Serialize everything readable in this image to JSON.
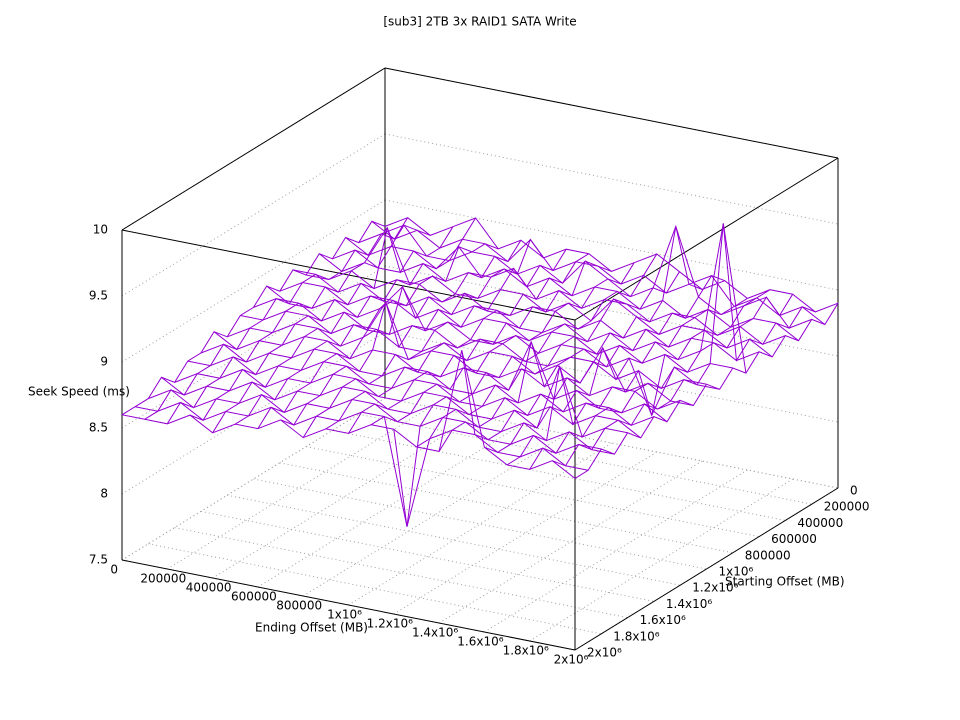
{
  "chart_data": {
    "type": "surface3d",
    "title": "[sub3] 2TB 3x RAID1 SATA Write",
    "xlabel": "Ending Offset (MB)",
    "ylabel": "Starting Offset (MB)",
    "zlabel": "Seek Speed (ms)",
    "color": "#9400d3",
    "grid": true,
    "xlim": [
      0,
      2000000
    ],
    "ylim": [
      0,
      2000000
    ],
    "zlim": [
      7.5,
      10
    ],
    "xticks": [
      0,
      200000,
      400000,
      600000,
      800000,
      {
        "value": 1000000,
        "label": "1x10⁶"
      },
      {
        "value": 1200000,
        "label": "1.2x10⁶"
      },
      {
        "value": 1400000,
        "label": "1.4x10⁶"
      },
      {
        "value": 1600000,
        "label": "1.6x10⁶"
      },
      {
        "value": 1800000,
        "label": "1.8x10⁶"
      },
      {
        "value": 2000000,
        "label": "2x10⁶"
      }
    ],
    "yticks": [
      0,
      200000,
      400000,
      600000,
      800000,
      {
        "value": 1000000,
        "label": "1x10⁶"
      },
      {
        "value": 1200000,
        "label": "1.2x10⁶"
      },
      {
        "value": 1400000,
        "label": "1.4x10⁶"
      },
      {
        "value": 1600000,
        "label": "1.6x10⁶"
      },
      {
        "value": 1800000,
        "label": "1.8x10⁶"
      },
      {
        "value": 2000000,
        "label": "2x10⁶"
      }
    ],
    "zticks": [
      7.5,
      8,
      8.5,
      9,
      9.5,
      10
    ],
    "x": [
      0,
      100000,
      200000,
      300000,
      400000,
      500000,
      600000,
      700000,
      800000,
      900000,
      1000000,
      1100000,
      1200000,
      1300000,
      1400000,
      1500000,
      1600000,
      1700000,
      1800000,
      1900000,
      2000000
    ],
    "y": [
      0,
      100000,
      200000,
      300000,
      400000,
      500000,
      600000,
      700000,
      800000,
      900000,
      1000000,
      1100000,
      1200000,
      1300000,
      1400000,
      1500000,
      1600000,
      1700000,
      1800000,
      1900000,
      2000000
    ],
    "z": [
      [
        8.8,
        8.9,
        8.8,
        8.9,
        9.0,
        8.8,
        8.9,
        8.8,
        8.9,
        8.9,
        8.8,
        8.9,
        9.0,
        8.9,
        8.8,
        8.9,
        8.8,
        8.9,
        8.9,
        8.8,
        8.9
      ],
      [
        8.9,
        8.8,
        8.9,
        8.8,
        8.9,
        8.9,
        8.8,
        9.0,
        8.8,
        8.9,
        8.9,
        8.8,
        8.9,
        8.8,
        8.9,
        9.0,
        8.8,
        8.9,
        8.8,
        8.9,
        8.8
      ],
      [
        8.8,
        8.9,
        9.0,
        8.8,
        8.8,
        8.9,
        8.9,
        8.8,
        8.9,
        8.8,
        9.0,
        8.9,
        8.8,
        8.9,
        9.4,
        8.9,
        8.8,
        8.9,
        9.0,
        8.8,
        8.9
      ],
      [
        8.9,
        8.8,
        8.9,
        8.9,
        8.8,
        9.0,
        8.8,
        8.9,
        8.8,
        8.9,
        8.8,
        8.9,
        8.9,
        8.8,
        8.9,
        8.8,
        8.9,
        8.8,
        8.9,
        8.9,
        8.8
      ],
      [
        8.8,
        8.9,
        8.8,
        8.8,
        8.9,
        8.8,
        8.9,
        8.9,
        9.0,
        8.8,
        8.9,
        8.8,
        8.9,
        8.9,
        8.8,
        8.9,
        8.9,
        8.8,
        8.9,
        8.8,
        8.9
      ],
      [
        8.9,
        8.8,
        8.9,
        9.2,
        8.8,
        8.9,
        8.8,
        8.8,
        8.9,
        8.9,
        8.8,
        8.9,
        8.8,
        9.0,
        8.9,
        8.8,
        8.9,
        8.9,
        8.8,
        8.9,
        8.8
      ],
      [
        8.8,
        8.8,
        8.9,
        8.8,
        8.9,
        8.9,
        8.8,
        8.9,
        8.8,
        8.8,
        8.9,
        8.9,
        8.8,
        8.9,
        8.8,
        8.9,
        8.8,
        8.9,
        8.9,
        8.8,
        8.9
      ],
      [
        8.9,
        8.9,
        8.8,
        8.9,
        8.8,
        8.8,
        8.9,
        8.8,
        8.9,
        8.9,
        8.8,
        8.8,
        8.9,
        8.8,
        8.9,
        8.8,
        8.9,
        8.8,
        8.9,
        9.9,
        8.8
      ],
      [
        8.8,
        8.9,
        8.9,
        8.8,
        8.9,
        8.9,
        8.8,
        8.9,
        8.8,
        8.9,
        8.9,
        8.8,
        8.9,
        8.9,
        8.8,
        8.9,
        8.8,
        8.9,
        8.8,
        8.9,
        8.9
      ],
      [
        8.9,
        8.8,
        8.8,
        8.9,
        8.8,
        8.9,
        9.1,
        8.8,
        8.9,
        8.8,
        8.8,
        8.9,
        8.8,
        8.9,
        8.9,
        8.8,
        8.9,
        8.5,
        8.9,
        8.8,
        8.8
      ],
      [
        8.8,
        8.9,
        8.9,
        8.8,
        8.9,
        8.8,
        8.8,
        8.9,
        8.9,
        8.8,
        8.9,
        8.9,
        8.8,
        8.8,
        8.9,
        8.9,
        8.8,
        8.9,
        8.8,
        8.9,
        8.9
      ],
      [
        8.8,
        8.8,
        8.9,
        8.9,
        8.8,
        8.9,
        8.9,
        8.8,
        8.8,
        8.9,
        8.8,
        8.9,
        8.9,
        8.8,
        8.9,
        8.8,
        9.1,
        8.8,
        8.9,
        8.8,
        8.8
      ],
      [
        8.7,
        8.8,
        8.8,
        8.9,
        8.9,
        8.8,
        8.9,
        9.2,
        8.8,
        8.9,
        8.9,
        8.8,
        8.8,
        8.9,
        8.8,
        8.9,
        8.8,
        8.9,
        8.9,
        8.8,
        8.9
      ],
      [
        8.8,
        8.7,
        8.8,
        8.8,
        8.9,
        8.9,
        8.8,
        8.9,
        8.9,
        8.8,
        8.8,
        8.9,
        8.9,
        8.8,
        9.2,
        8.8,
        8.9,
        8.8,
        8.8,
        8.9,
        8.8
      ],
      [
        8.7,
        8.8,
        8.7,
        8.8,
        8.8,
        8.9,
        8.9,
        8.8,
        8.8,
        8.9,
        8.9,
        8.8,
        8.8,
        8.9,
        8.8,
        8.9,
        8.8,
        8.9,
        8.9,
        8.8,
        8.9
      ],
      [
        8.7,
        8.7,
        8.8,
        8.7,
        8.8,
        8.8,
        8.9,
        8.9,
        8.8,
        8.8,
        8.9,
        8.9,
        8.8,
        8.8,
        8.9,
        8.8,
        8.9,
        8.8,
        8.9,
        8.9,
        8.8
      ],
      [
        8.6,
        8.7,
        8.7,
        8.8,
        8.7,
        8.8,
        8.8,
        8.9,
        8.9,
        8.8,
        8.8,
        8.9,
        8.9,
        8.8,
        8.8,
        8.9,
        8.8,
        9.3,
        8.8,
        8.9,
        8.9
      ],
      [
        8.7,
        8.6,
        8.7,
        8.7,
        8.8,
        8.7,
        8.8,
        8.8,
        8.9,
        8.9,
        8.8,
        8.8,
        8.9,
        8.9,
        8.8,
        8.8,
        8.9,
        8.8,
        8.9,
        8.8,
        8.8
      ],
      [
        8.6,
        8.7,
        8.6,
        8.7,
        8.7,
        8.8,
        8.7,
        8.8,
        8.8,
        8.9,
        8.9,
        8.8,
        8.8,
        8.9,
        8.9,
        8.8,
        8.8,
        8.9,
        8.8,
        8.9,
        8.9
      ],
      [
        8.6,
        8.6,
        8.7,
        8.6,
        8.7,
        8.7,
        8.8,
        8.7,
        8.8,
        8.8,
        8.9,
        8.9,
        8.1,
        8.8,
        8.9,
        8.9,
        8.8,
        8.8,
        8.9,
        8.8,
        8.8
      ],
      [
        8.6,
        8.6,
        8.6,
        8.7,
        8.6,
        8.7,
        8.7,
        8.8,
        8.7,
        8.8,
        8.8,
        8.9,
        8.9,
        8.8,
        8.8,
        9.6,
        8.9,
        8.8,
        8.8,
        8.9,
        8.8
      ]
    ]
  }
}
